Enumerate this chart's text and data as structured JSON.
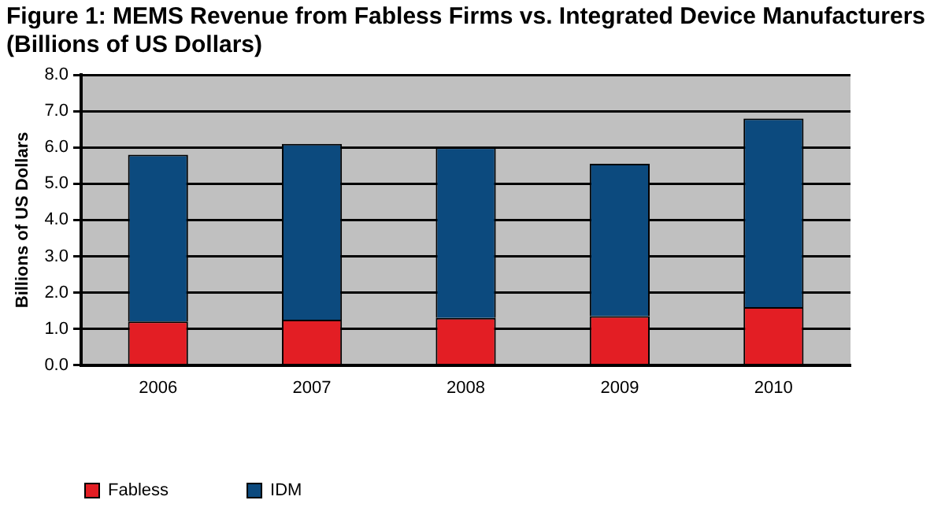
{
  "chart_data": {
    "type": "bar",
    "title": "Figure 1: MEMS Revenue from Fabless Firms vs. Integrated Device Manufacturers",
    "subtitle": "(Billions of US Dollars)",
    "ylabel": "Billions of US Dollars",
    "categories": [
      "2006",
      "2007",
      "2008",
      "2009",
      "2010"
    ],
    "series": [
      {
        "name": "Fabless",
        "color": "#e31e24",
        "values": [
          1.2,
          1.25,
          1.3,
          1.35,
          1.6
        ]
      },
      {
        "name": "IDM",
        "color": "#0c4a7e",
        "values": [
          4.6,
          4.85,
          4.7,
          4.2,
          5.2
        ]
      }
    ],
    "stacked": true,
    "ylim": [
      0,
      8
    ],
    "yticks": [
      {
        "value": 0,
        "label": "0.0"
      },
      {
        "value": 1,
        "label": "1.0"
      },
      {
        "value": 2,
        "label": "2.0"
      },
      {
        "value": 3,
        "label": "3.0"
      },
      {
        "value": 4,
        "label": "4.0"
      },
      {
        "value": 5,
        "label": "5.0"
      },
      {
        "value": 6,
        "label": "6.0"
      },
      {
        "value": 7,
        "label": "7.0"
      },
      {
        "value": 8,
        "label": "8.0"
      }
    ],
    "grid": "y",
    "legend": "bottom"
  }
}
